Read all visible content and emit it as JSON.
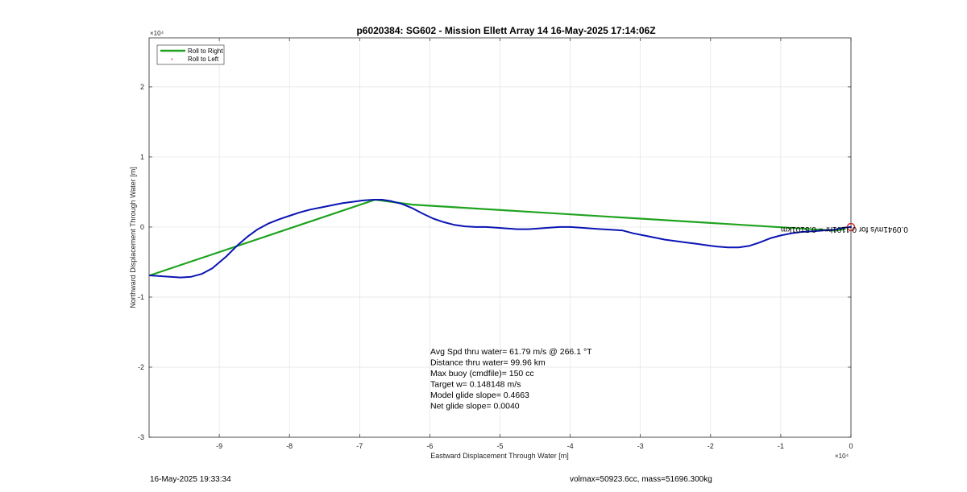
{
  "chart_data": {
    "type": "line",
    "title": "p6020384: SG602 - Mission Ellett Array 14 16-May-2025 17:14:06Z",
    "xlabel": "Eastward Displacement Through Water [m]",
    "ylabel": "Northward Displacement Through Water [m]",
    "x_exponent_label": "×10⁴",
    "y_exponent_label": "×10⁴",
    "xlim": [
      -100000,
      0
    ],
    "ylim": [
      -30000,
      27000
    ],
    "grid": true,
    "x_ticks": [
      -90000,
      -80000,
      -70000,
      -60000,
      -50000,
      -40000,
      -30000,
      -20000,
      -10000,
      0
    ],
    "x_tick_labels": [
      "-9",
      "-8",
      "-7",
      "-6",
      "-5",
      "-4",
      "-3",
      "-2",
      "-1",
      "0"
    ],
    "y_ticks": [
      -30000,
      -20000,
      -10000,
      0,
      10000,
      20000
    ],
    "y_tick_labels": [
      "-3",
      "-2",
      "-1",
      "0",
      "1",
      "2"
    ],
    "legend": {
      "location": "top-left",
      "entries": [
        {
          "label": "Roll to Right",
          "color": "#1fa31f",
          "style": "line"
        },
        {
          "label": "Roll to Left",
          "color": "#d62728",
          "style": "marker"
        }
      ]
    },
    "series": [
      {
        "name": "Roll to Right",
        "color": "#1fa31f",
        "x": [
          -99900,
          -67800,
          -62500,
          -2400,
          -900
        ],
        "y": [
          -6900,
          3900,
          3200,
          -500,
          -300
        ]
      },
      {
        "color": "#0a14b4",
        "x": [
          -99900,
          -98500,
          -97000,
          -95500,
          -94000,
          -92500,
          -91000,
          -89000,
          -87500,
          -86000,
          -84500,
          -83000,
          -81500,
          -80000,
          -78500,
          -77000,
          -75500,
          -74000,
          -72500,
          -71000,
          -69500,
          -68000,
          -66800,
          -65500,
          -64000,
          -62500,
          -61000,
          -59500,
          -58000,
          -56500,
          -55000,
          -53500,
          -52000,
          -50500,
          -49000,
          -47500,
          -46000,
          -44500,
          -43000,
          -41500,
          -40000,
          -38500,
          -37000,
          -35500,
          -34000,
          -32500,
          -31000,
          -29500,
          -28000,
          -26500,
          -25000,
          -23500,
          -22000,
          -20500,
          -19000,
          -17500,
          -16000,
          -14500,
          -13000,
          -11500,
          -10000,
          -8500,
          -7000,
          -5500,
          -4000,
          -2500,
          -1000,
          0
        ],
        "y": [
          -6900,
          -7000,
          -7100,
          -7200,
          -7100,
          -6700,
          -5900,
          -4200,
          -2700,
          -1400,
          -300,
          500,
          1100,
          1600,
          2100,
          2500,
          2800,
          3100,
          3400,
          3600,
          3800,
          3900,
          3900,
          3700,
          3300,
          2700,
          1900,
          1200,
          700,
          300,
          100,
          0,
          0,
          -100,
          -200,
          -300,
          -300,
          -200,
          -100,
          0,
          0,
          -100,
          -200,
          -300,
          -400,
          -500,
          -900,
          -1200,
          -1500,
          -1800,
          -2000,
          -2200,
          -2400,
          -2600,
          -2800,
          -2900,
          -2900,
          -2700,
          -2200,
          -1600,
          -1200,
          -900,
          -700,
          -600,
          -500,
          -400,
          -100,
          0
        ]
      }
    ],
    "end_marker": {
      "x": 0,
      "y": 0,
      "color": "#d62728"
    },
    "annotation": {
      "text": "0.0941m/s for 0.1101hr = 0.5101km",
      "rotated": 180,
      "x": -10000,
      "y": 0
    },
    "stats": [
      "Avg Spd thru water= 61.79 m/s @ 266.1 °T",
      "Distance thru water= 99.96 km",
      "Max buoy (cmdfile)= 150 cc",
      "Target w= 0.148148 m/s",
      "Model glide slope= 0.4663",
      "Net glide slope= 0.0040"
    ],
    "footer_left": "16-May-2025 19:33:34",
    "footer_right": "volmax=50923.6cc, mass=51696.300kg"
  }
}
